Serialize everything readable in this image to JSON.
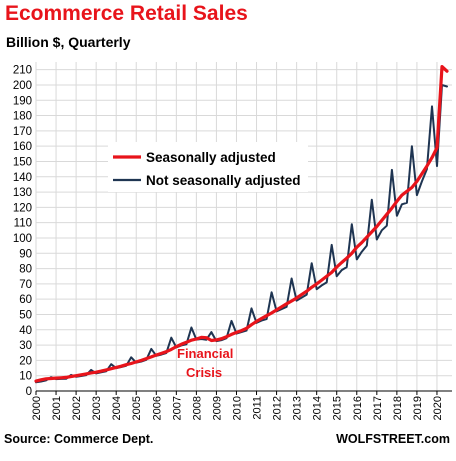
{
  "chart_data": {
    "type": "line",
    "title": "Ecommerce Retail Sales",
    "subtitle": "Billion $, Quarterly",
    "source": "Source: Commerce Dept.",
    "brand": "WOLFSTREET.com",
    "annotation": {
      "line1": "Financial",
      "line2": "Crisis"
    },
    "ylim": [
      0,
      215
    ],
    "yticks": [
      0,
      10,
      20,
      30,
      40,
      50,
      60,
      70,
      80,
      90,
      100,
      110,
      120,
      130,
      140,
      150,
      160,
      170,
      180,
      190,
      200,
      210
    ],
    "xlim": [
      2000,
      2020.75
    ],
    "xticks": [
      2000,
      2001,
      2002,
      2003,
      2004,
      2005,
      2006,
      2007,
      2008,
      2009,
      2010,
      2011,
      2012,
      2013,
      2014,
      2015,
      2016,
      2017,
      2018,
      2019,
      2020
    ],
    "grid": true,
    "legend_placement": "top-center",
    "colors": {
      "seasonal": "#e8141b",
      "nsa": "#1f3552",
      "grid": "#d9d9d9"
    },
    "series": [
      {
        "name": "Seasonally adjusted",
        "x": [
          2000.0,
          2000.25,
          2000.5,
          2000.75,
          2001.0,
          2001.25,
          2001.5,
          2001.75,
          2002.0,
          2002.25,
          2002.5,
          2002.75,
          2003.0,
          2003.25,
          2003.5,
          2003.75,
          2004.0,
          2004.25,
          2004.5,
          2004.75,
          2005.0,
          2005.25,
          2005.5,
          2005.75,
          2006.0,
          2006.25,
          2006.5,
          2006.75,
          2007.0,
          2007.25,
          2007.5,
          2007.75,
          2008.0,
          2008.25,
          2008.5,
          2008.75,
          2009.0,
          2009.25,
          2009.5,
          2009.75,
          2010.0,
          2010.25,
          2010.5,
          2010.75,
          2011.0,
          2011.25,
          2011.5,
          2011.75,
          2012.0,
          2012.25,
          2012.5,
          2012.75,
          2013.0,
          2013.25,
          2013.5,
          2013.75,
          2014.0,
          2014.25,
          2014.5,
          2014.75,
          2015.0,
          2015.25,
          2015.5,
          2015.75,
          2016.0,
          2016.25,
          2016.5,
          2016.75,
          2017.0,
          2017.25,
          2017.5,
          2017.75,
          2018.0,
          2018.25,
          2018.5,
          2018.75,
          2019.0,
          2019.25,
          2019.5,
          2019.75,
          2020.0,
          2020.25,
          2020.5
        ],
        "values": [
          6.5,
          7.3,
          8.0,
          8.2,
          8.4,
          8.6,
          8.9,
          9.5,
          10.0,
          10.6,
          11.2,
          11.8,
          12.3,
          13.0,
          13.8,
          14.6,
          15.4,
          16.2,
          17.2,
          18.0,
          19.0,
          20.0,
          21.2,
          22.3,
          23.5,
          24.6,
          25.7,
          27.2,
          29.0,
          30.5,
          31.8,
          33.2,
          34.0,
          35.0,
          34.8,
          33.0,
          33.4,
          34.2,
          35.5,
          37.0,
          38.3,
          39.5,
          41.0,
          43.3,
          45.5,
          47.4,
          49.2,
          51.0,
          53.0,
          55.0,
          57.0,
          58.8,
          60.8,
          63.0,
          65.2,
          67.8,
          70.0,
          72.5,
          75.0,
          77.5,
          81.0,
          84.0,
          86.8,
          90.0,
          94.0,
          97.0,
          100.5,
          104.0,
          107.5,
          111.5,
          115.5,
          119.5,
          124.0,
          128.0,
          130.5,
          133.0,
          137.0,
          142.0,
          147.0,
          152.5,
          159.0,
          212.0,
          209.0
        ]
      },
      {
        "name": "Not seasonally adjusted",
        "x": [
          2000.0,
          2000.25,
          2000.5,
          2000.75,
          2001.0,
          2001.25,
          2001.5,
          2001.75,
          2002.0,
          2002.25,
          2002.5,
          2002.75,
          2003.0,
          2003.25,
          2003.5,
          2003.75,
          2004.0,
          2004.25,
          2004.5,
          2004.75,
          2005.0,
          2005.25,
          2005.5,
          2005.75,
          2006.0,
          2006.25,
          2006.5,
          2006.75,
          2007.0,
          2007.25,
          2007.5,
          2007.75,
          2008.0,
          2008.25,
          2008.5,
          2008.75,
          2009.0,
          2009.25,
          2009.5,
          2009.75,
          2010.0,
          2010.25,
          2010.5,
          2010.75,
          2011.0,
          2011.25,
          2011.5,
          2011.75,
          2012.0,
          2012.25,
          2012.5,
          2012.75,
          2013.0,
          2013.25,
          2013.5,
          2013.75,
          2014.0,
          2014.25,
          2014.5,
          2014.75,
          2015.0,
          2015.25,
          2015.5,
          2015.75,
          2016.0,
          2016.25,
          2016.5,
          2016.75,
          2017.0,
          2017.25,
          2017.5,
          2017.75,
          2018.0,
          2018.25,
          2018.5,
          2018.75,
          2019.0,
          2019.25,
          2019.5,
          2019.75,
          2020.0,
          2020.25,
          2020.5
        ],
        "values": [
          5.7,
          6.2,
          6.9,
          9.0,
          7.8,
          7.9,
          8.0,
          10.5,
          9.3,
          9.8,
          10.3,
          13.8,
          11.5,
          12.2,
          12.9,
          17.5,
          14.9,
          15.7,
          16.5,
          22.0,
          18.5,
          19.3,
          20.4,
          27.5,
          23.0,
          23.8,
          24.8,
          34.8,
          28.5,
          29.8,
          30.5,
          41.5,
          33.6,
          34.0,
          33.5,
          38.5,
          32.6,
          33.2,
          34.5,
          45.8,
          37.5,
          38.5,
          39.5,
          54.0,
          44.5,
          46.0,
          47.0,
          64.5,
          52.0,
          53.5,
          55.0,
          73.5,
          59.0,
          61.0,
          63.0,
          83.5,
          66.5,
          69.0,
          71.0,
          95.5,
          75.0,
          79.0,
          81.0,
          109.0,
          86.0,
          91.0,
          95.0,
          125.0,
          99.0,
          105.0,
          108.0,
          144.5,
          114.5,
          122.0,
          123.0,
          160.0,
          128.0,
          137.0,
          145.0,
          186.0,
          147.0,
          200.0,
          199.0
        ]
      }
    ]
  }
}
